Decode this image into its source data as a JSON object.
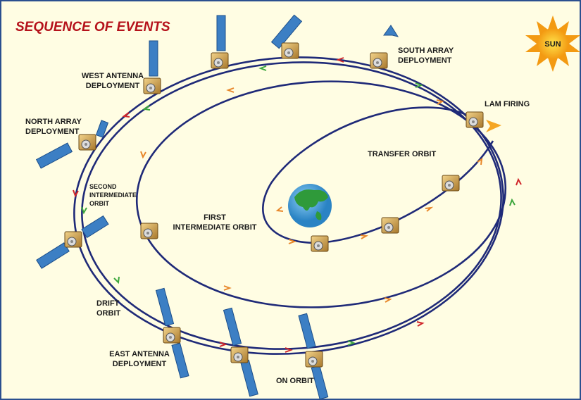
{
  "title": "SEQUENCE OF EVENTS",
  "sun": "SUN",
  "labels": {
    "south_array": [
      "SOUTH ARRAY",
      "DEPLOYMENT"
    ],
    "west_antenna": [
      "WEST ANTENNA",
      "DEPLOYMENT"
    ],
    "lam_firing": [
      "LAM FIRING"
    ],
    "north_array": [
      "NORTH ARRAY",
      "DEPLOYMENT"
    ],
    "transfer_orbit": [
      "TRANSFER ORBIT"
    ],
    "second_intermediate": [
      "SECOND",
      "INTERMEDIATE",
      "ORBIT"
    ],
    "first_intermediate": [
      "FIRST",
      "INTERMEDIATE ORBIT"
    ],
    "drift_orbit": [
      "DRIFT",
      "ORBIT"
    ],
    "east_antenna": [
      "EAST ANTENNA",
      "DEPLOYMENT"
    ],
    "on_orbit": [
      "ON ORBIT"
    ]
  }
}
